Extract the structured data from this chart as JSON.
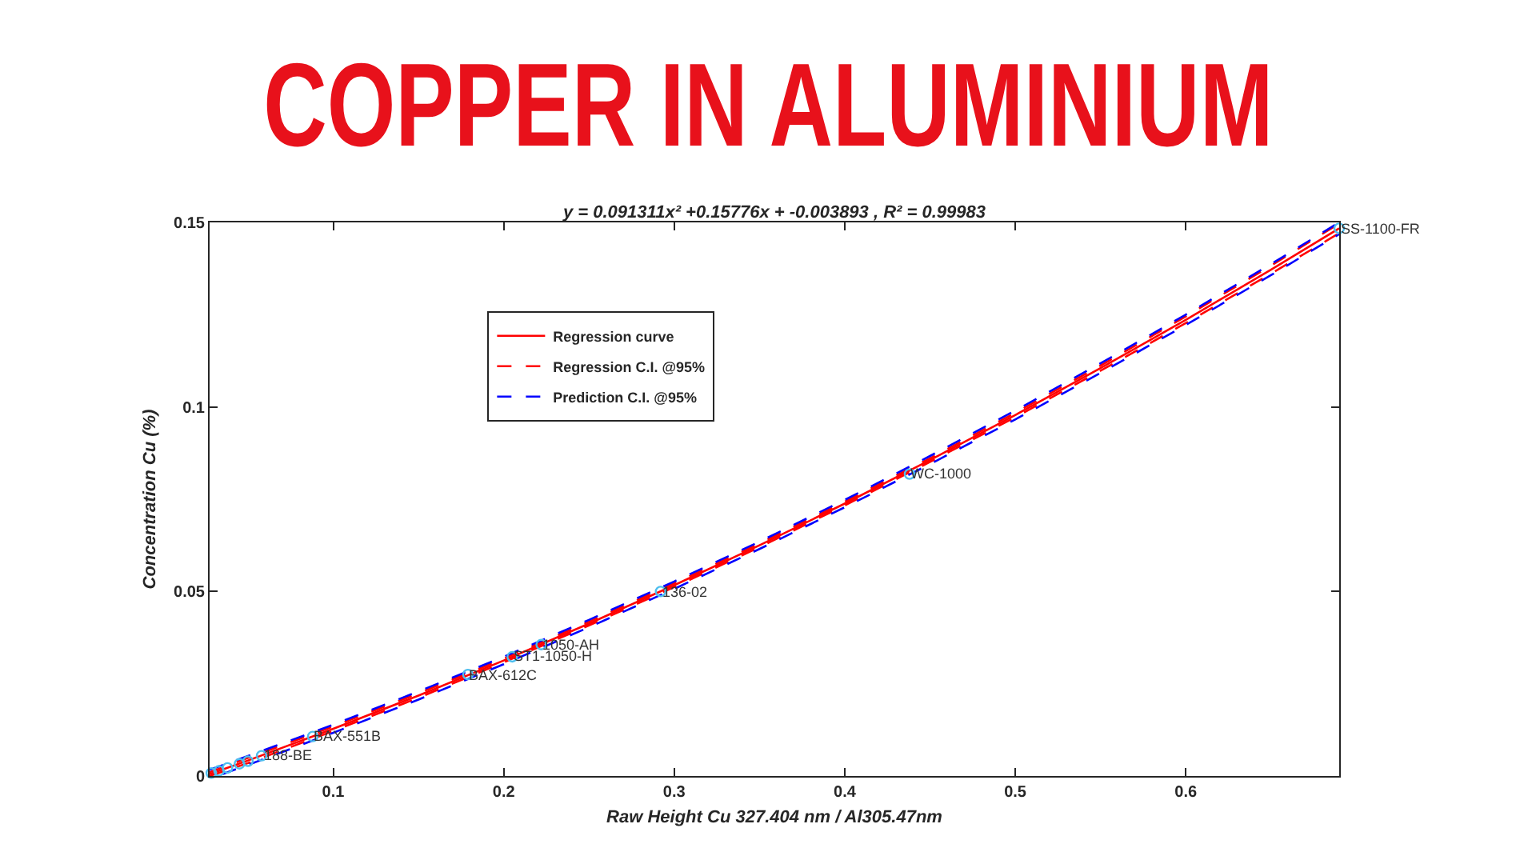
{
  "chart_data": {
    "type": "line",
    "title": "COPPER IN ALUMINIUM",
    "subtitle": "y = 0.091311x² +0.15776x + -0.003893 , R² = 0.99983",
    "xlabel": "Raw Height Cu 327.404 nm / Al305.47nm",
    "ylabel": "Concentration Cu (%)",
    "x": [
      0.0275,
      0.05,
      0.1,
      0.15,
      0.2,
      0.25,
      0.3,
      0.35,
      0.4,
      0.45,
      0.5,
      0.55,
      0.6,
      0.65,
      0.69
    ],
    "series": [
      {
        "name": "Regression curve",
        "color": "#ff0000",
        "line_style": "solid",
        "values": [
          0.0005,
          0.0042,
          0.0128,
          0.0218,
          0.0313,
          0.0413,
          0.0517,
          0.0625,
          0.0738,
          0.0856,
          0.0978,
          0.1105,
          0.1236,
          0.1372,
          0.1484
        ]
      },
      {
        "name": "Regression C.I. @95%",
        "color": "#ff0000",
        "line_style": "dashed",
        "values": [
          0.001,
          0.0049,
          0.0134,
          0.0224,
          0.0318,
          0.0418,
          0.0522,
          0.063,
          0.0743,
          0.0861,
          0.0984,
          0.1112,
          0.1245,
          0.1383,
          0.1497
        ]
      },
      {
        "color": "#ff0000",
        "line_style": "dashed",
        "values": [
          0.0,
          0.0035,
          0.0122,
          0.0212,
          0.0308,
          0.0408,
          0.0512,
          0.062,
          0.0733,
          0.0851,
          0.0972,
          0.1098,
          0.1227,
          0.1361,
          0.1471
        ]
      },
      {
        "name": "Prediction C.I. @95%",
        "color": "#0000ff",
        "line_style": "dashed",
        "values": [
          0.0017,
          0.0054,
          0.0139,
          0.0229,
          0.0323,
          0.0423,
          0.0527,
          0.0635,
          0.0748,
          0.0867,
          0.099,
          0.1118,
          0.125,
          0.1387,
          0.15
        ]
      },
      {
        "color": "#0000ff",
        "line_style": "dashed",
        "x": [
          0.035,
          0.05,
          0.1,
          0.15,
          0.2,
          0.25,
          0.3,
          0.35,
          0.4,
          0.45,
          0.5,
          0.55,
          0.6,
          0.65,
          0.69
        ],
        "values": [
          0.0005,
          0.003,
          0.0117,
          0.0207,
          0.0303,
          0.0403,
          0.0507,
          0.0615,
          0.0728,
          0.0845,
          0.0966,
          0.1092,
          0.1222,
          0.1357,
          0.1468
        ]
      },
      {
        "type": "scatter",
        "color": "#4dbeee",
        "marker": "circle",
        "x": [
          0.0285,
          0.033,
          0.038,
          0.045,
          0.05,
          0.058,
          0.088,
          0.179,
          0.205,
          0.222,
          0.292,
          0.438,
          0.69
        ],
        "values": [
          0.0008,
          0.0014,
          0.0022,
          0.0033,
          0.004,
          0.0055,
          0.0107,
          0.0275,
          0.0323,
          0.0356,
          0.05,
          0.0818,
          0.1484
        ]
      }
    ],
    "annotations": [
      {
        "text": "SS-1100-FR",
        "x": 0.69,
        "y": 0.1484
      },
      {
        "text": "WC-1000",
        "x": 0.438,
        "y": 0.0818
      },
      {
        "text": "136-02",
        "x": 0.292,
        "y": 0.05
      },
      {
        "text": "1050-AH",
        "x": 0.222,
        "y": 0.0356
      },
      {
        "text": "ST1-1050-H",
        "x": 0.205,
        "y": 0.0323
      },
      {
        "text": "BAX-612C",
        "x": 0.179,
        "y": 0.0275
      },
      {
        "text": "BAX-551B",
        "x": 0.088,
        "y": 0.0107
      },
      {
        "text": "188-BE",
        "x": 0.058,
        "y": 0.0055
      }
    ],
    "xlim": [
      0.0275,
      0.69
    ],
    "xticks": [
      0.1,
      0.2,
      0.3,
      0.4,
      0.5,
      0.6
    ],
    "ylim": [
      0,
      0.15
    ],
    "yticks": [
      0,
      0.05,
      0.1,
      0.15
    ],
    "legend": "top left"
  }
}
